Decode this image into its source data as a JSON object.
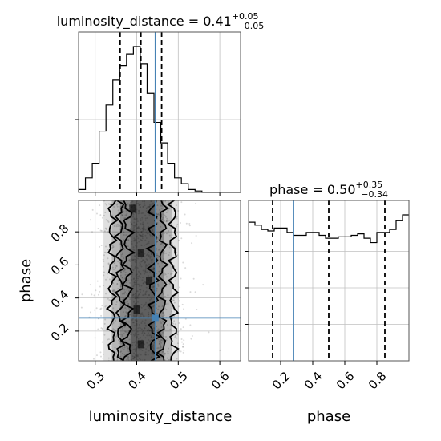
{
  "chart_data": [
    {
      "type": "histogram",
      "panel": "top-left",
      "title": {
        "param": "luminosity_distance",
        "value": "0.41",
        "plus": "+0.05",
        "minus": "−0.05"
      },
      "xlim": [
        0.26,
        0.65
      ],
      "bins": [
        0.26,
        0.2765,
        0.293,
        0.3095,
        0.326,
        0.3425,
        0.359,
        0.3755,
        0.392,
        0.4085,
        0.425,
        0.4415,
        0.458,
        0.4745,
        0.491,
        0.5075,
        0.524,
        0.5405,
        0.557,
        0.5735,
        0.59,
        0.6065,
        0.623,
        0.6395,
        0.65
      ],
      "counts": [
        0.02,
        0.1,
        0.2,
        0.42,
        0.6,
        0.77,
        0.87,
        0.95,
        1.0,
        0.88,
        0.68,
        0.48,
        0.34,
        0.2,
        0.1,
        0.06,
        0.02,
        0.01,
        0.0,
        0.0,
        0.0,
        0.0,
        0.0,
        0.0
      ],
      "quantiles": [
        0.36,
        0.41,
        0.46
      ],
      "truth": 0.445,
      "grid": true,
      "xtick_labels_shown": false,
      "ytick_labels_shown": false
    },
    {
      "type": "histogram",
      "panel": "bottom-right",
      "title": {
        "param": "phase",
        "value": "0.50",
        "plus": "+0.35",
        "minus": "−0.34"
      },
      "xlim": [
        0.0,
        1.0
      ],
      "xlabel": "phase",
      "xticks": [
        0.2,
        0.4,
        0.6,
        0.8
      ],
      "xtick_labels": [
        "0.2",
        "0.4",
        "0.6",
        "0.8"
      ],
      "bins": [
        0,
        0.04,
        0.08,
        0.12,
        0.16,
        0.2,
        0.24,
        0.28,
        0.32,
        0.36,
        0.4,
        0.44,
        0.48,
        0.52,
        0.56,
        0.6,
        0.64,
        0.68,
        0.72,
        0.76,
        0.8,
        0.84,
        0.88,
        0.92,
        0.96,
        1.0
      ],
      "counts": [
        0.95,
        0.93,
        0.9,
        0.89,
        0.91,
        0.91,
        0.88,
        0.86,
        0.86,
        0.88,
        0.88,
        0.86,
        0.84,
        0.84,
        0.85,
        0.85,
        0.86,
        0.87,
        0.84,
        0.81,
        0.88,
        0.88,
        0.9,
        0.96,
        1.0
      ],
      "quantiles": [
        0.15,
        0.5,
        0.85
      ],
      "truth": 0.28,
      "grid": true
    },
    {
      "type": "scatter-density-contour",
      "panel": "bottom-left",
      "xlim": [
        0.26,
        0.65
      ],
      "ylim": [
        0.02,
        0.99
      ],
      "xlabel": "luminosity_distance",
      "ylabel": "phase",
      "xticks": [
        0.3,
        0.4,
        0.5,
        0.6
      ],
      "xtick_labels": [
        "0.3",
        "0.4",
        "0.5",
        "0.6"
      ],
      "yticks": [
        0.2,
        0.4,
        0.6,
        0.8
      ],
      "ytick_labels": [
        "0.2",
        "0.4",
        "0.6",
        "0.8"
      ],
      "truth": [
        0.445,
        0.28
      ],
      "truth_color": "#4682b4",
      "grid": true
    }
  ],
  "colors": {
    "hist": "#000000",
    "truth": "#4682b4",
    "grid": "#c0c0c0",
    "points": "#555555"
  }
}
